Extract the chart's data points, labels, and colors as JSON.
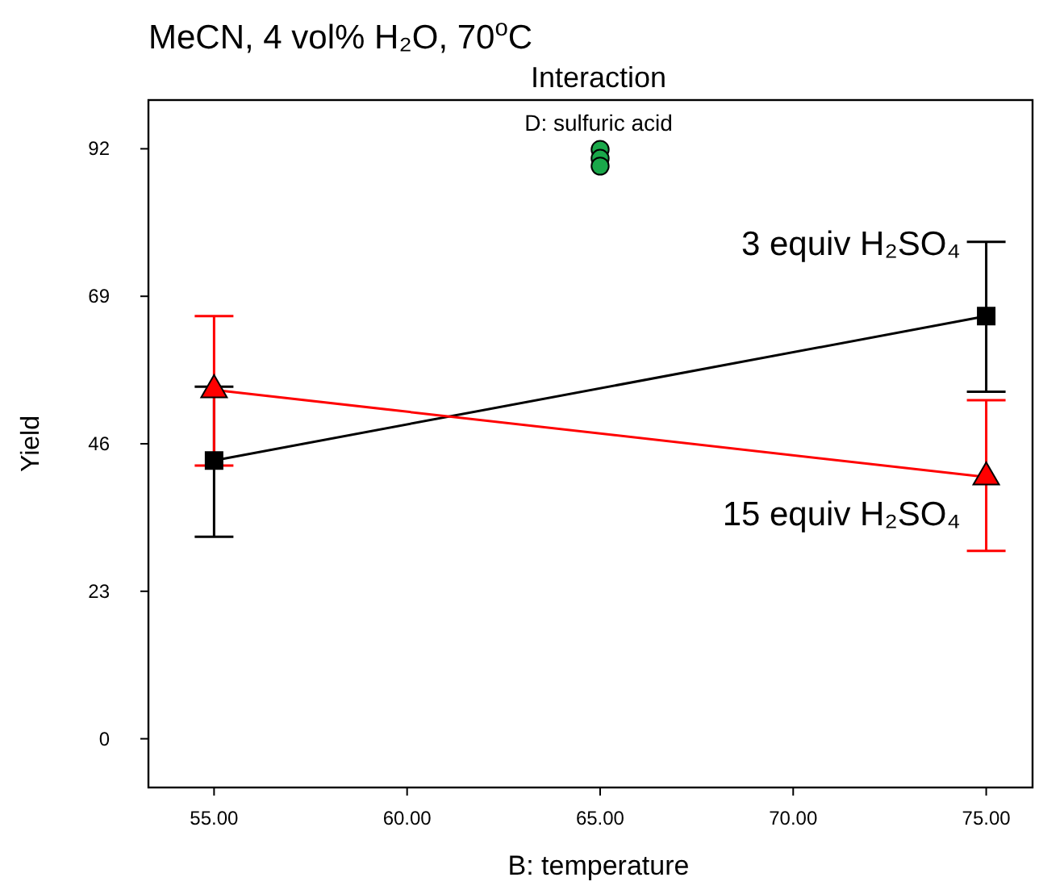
{
  "chart_data": {
    "type": "line",
    "title": "MeCN, 4 vol% H₂O, 70$^{o}$C",
    "subtitle": "Interaction",
    "annotations": [
      "D: sulfuric acid"
    ],
    "xlabel": "B: temperature",
    "ylabel": "Yield",
    "xlim": [
      53.3,
      76.2
    ],
    "xticks": [
      {
        "value": 55,
        "label": "55.00"
      },
      {
        "value": 60,
        "label": "60.00"
      },
      {
        "value": 65,
        "label": "65.00"
      },
      {
        "value": 70,
        "label": "70.00"
      },
      {
        "value": 75,
        "label": "75.00"
      }
    ],
    "ylim": [
      -7.6,
      99.6
    ],
    "yticks": [
      0,
      23,
      46,
      69,
      92
    ],
    "grid": false,
    "series": [
      {
        "name": "3 equiv H₂SO₄",
        "color": "#000000",
        "marker": "square",
        "x": [
          55,
          75
        ],
        "values": [
          43.4,
          65.9
        ],
        "errors": [
          [
            31.5,
            54.9
          ],
          [
            54.1,
            77.5
          ]
        ]
      },
      {
        "name": "15 equiv H₂SO₄",
        "color": "#ff0000",
        "marker": "triangle",
        "x": [
          55,
          75
        ],
        "values": [
          54.4,
          40.8
        ],
        "errors": [
          [
            42.6,
            65.9
          ],
          [
            29.3,
            52.8
          ]
        ]
      },
      {
        "type": "scatter",
        "color": "#1aa84a",
        "marker": "circle",
        "x": [
          65,
          65,
          65
        ],
        "values": [
          91.9,
          90.5,
          89.3
        ]
      }
    ]
  }
}
